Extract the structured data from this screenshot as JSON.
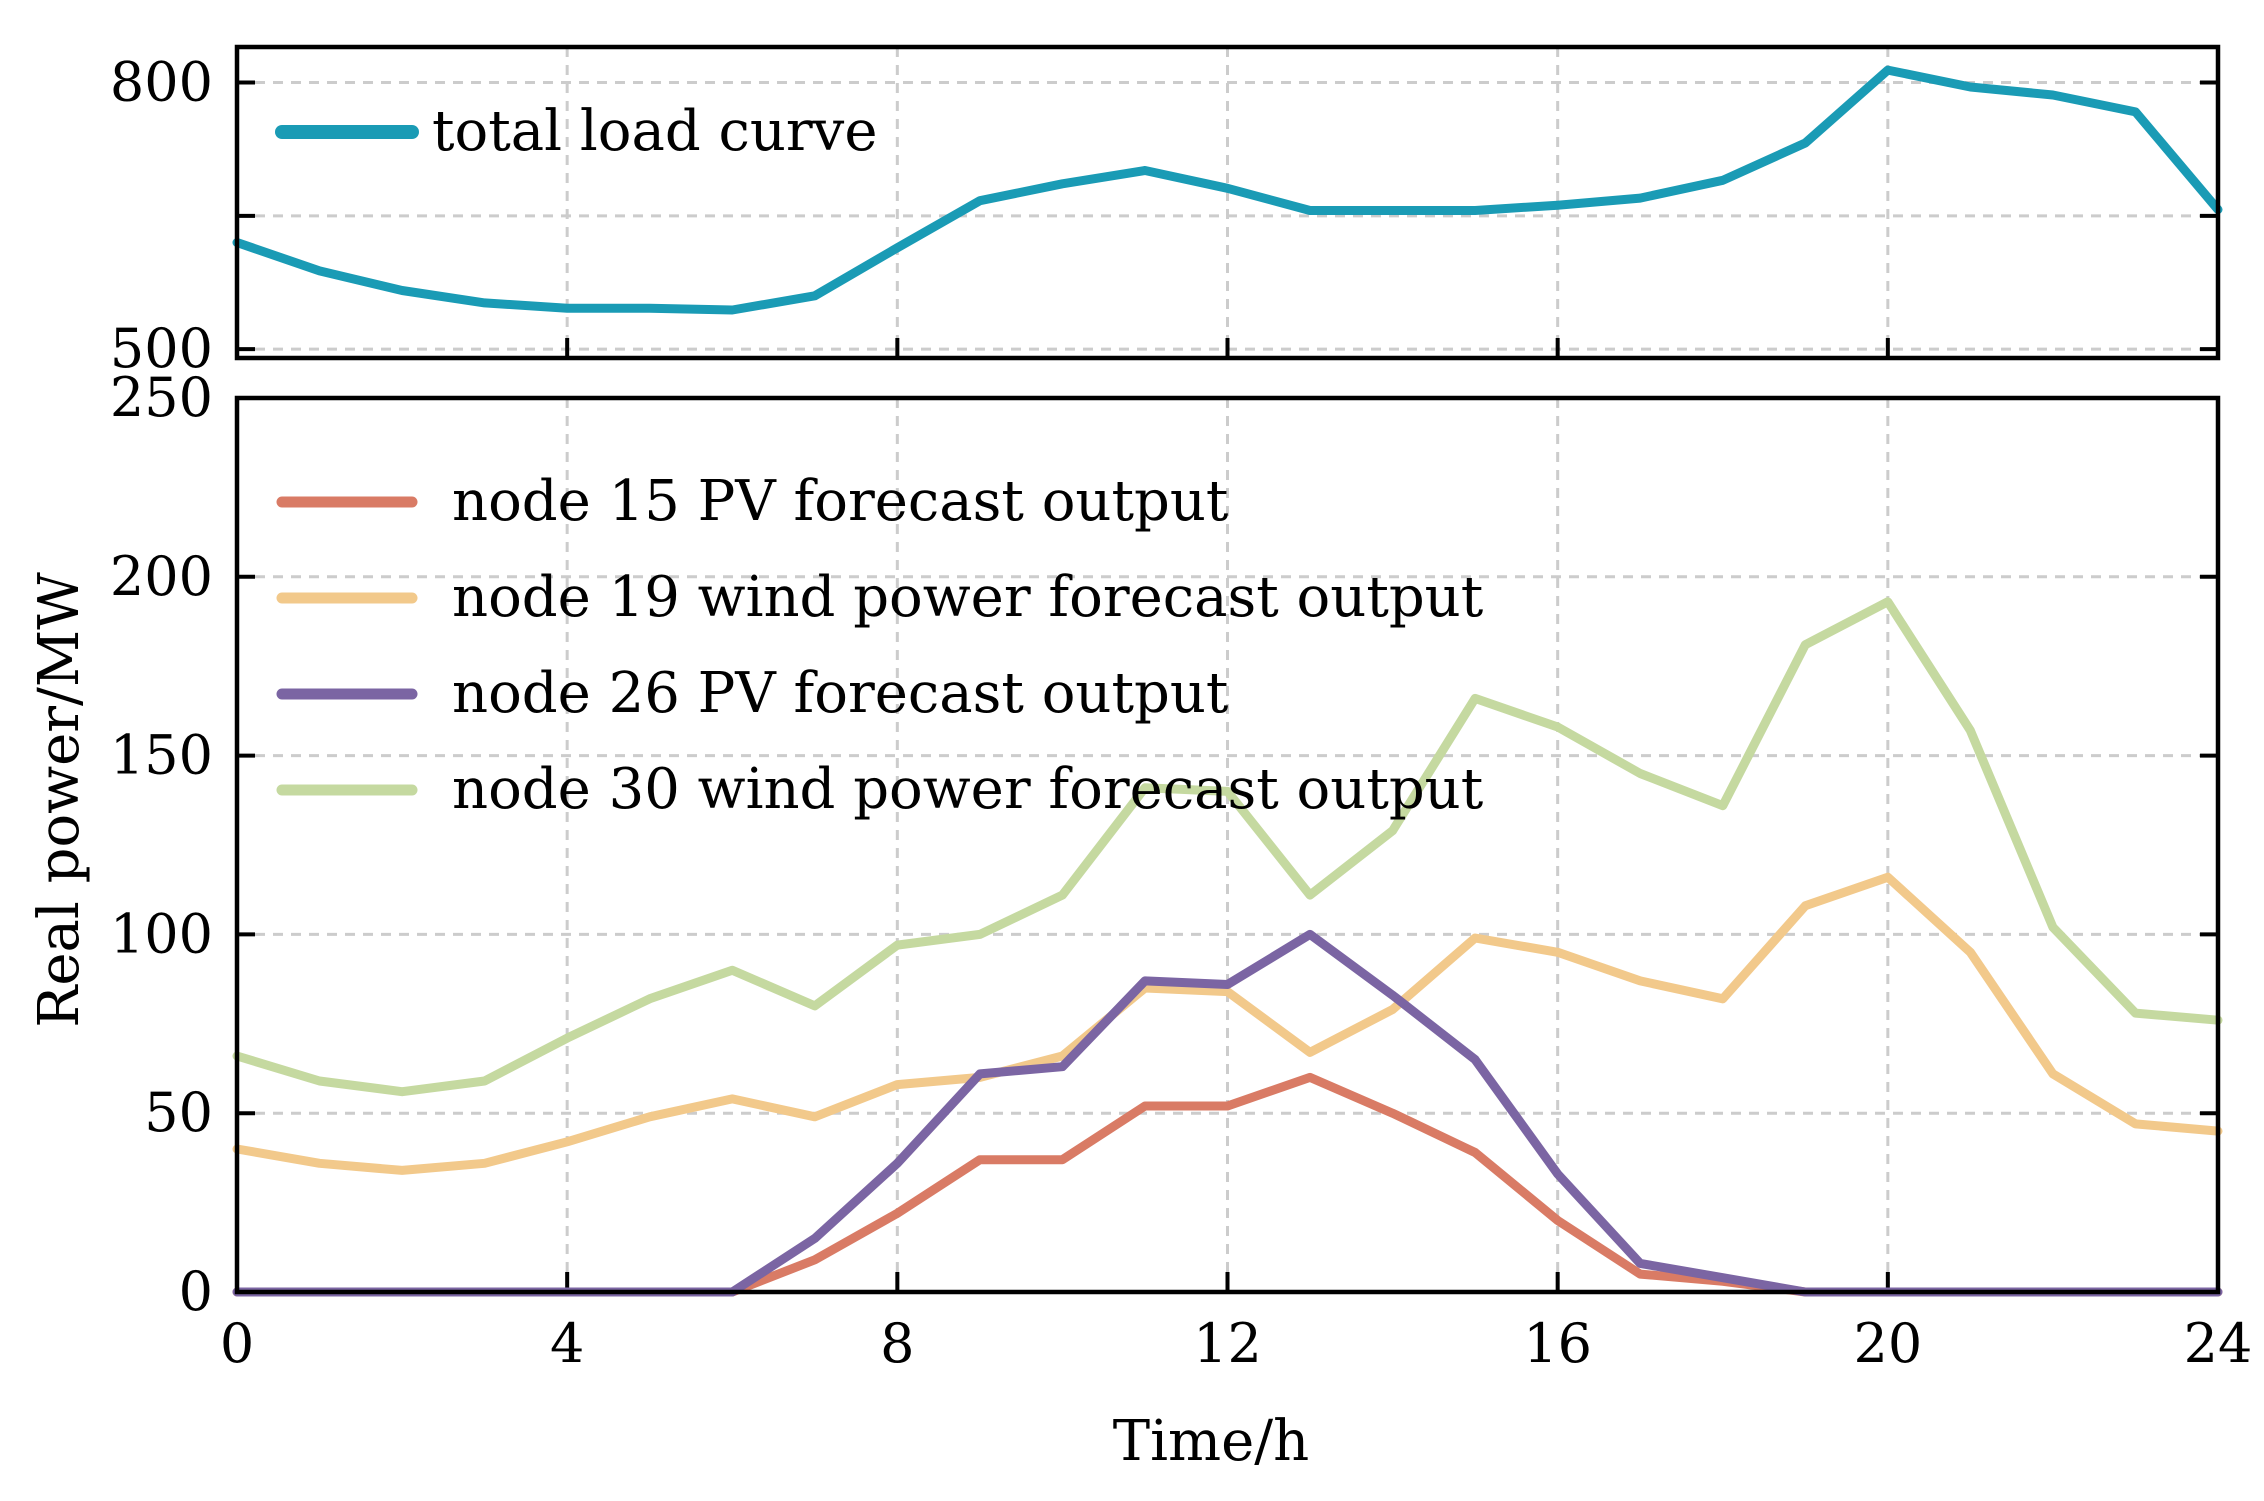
{
  "chart_data": [
    {
      "type": "line",
      "panel": "top",
      "title": "",
      "xlabel": "",
      "ylabel": "",
      "xlim": [
        0,
        24
      ],
      "ylim": [
        490,
        840
      ],
      "xticks": [
        0,
        4,
        8,
        12,
        16,
        20,
        24
      ],
      "ytick_labels": [
        {
          "value": 800,
          "label": "800"
        },
        {
          "value": 650,
          "label": ""
        },
        {
          "value": 500,
          "label": "500"
        }
      ],
      "grid": true,
      "legend_position": "top-left",
      "series": [
        {
          "name": "total load curve",
          "color": "#1a9bb5",
          "x": [
            0,
            1,
            2,
            3,
            4,
            5,
            6,
            7,
            8,
            9,
            10,
            11,
            12,
            13,
            14,
            15,
            16,
            17,
            18,
            19,
            20,
            21,
            22,
            23,
            24
          ],
          "values": [
            620,
            588,
            566,
            552,
            546,
            546,
            544,
            560,
            614,
            667,
            686,
            701,
            681,
            656,
            656,
            656,
            662,
            670,
            690,
            732,
            814,
            795,
            786,
            767,
            657
          ]
        }
      ]
    },
    {
      "type": "line",
      "panel": "bottom",
      "title": "",
      "xlabel": "Time/h",
      "ylabel": "Real power/MW",
      "xlim": [
        0,
        24
      ],
      "ylim": [
        0,
        250
      ],
      "xticks": [
        0,
        4,
        8,
        12,
        16,
        20,
        24
      ],
      "xtick_labels": [
        "0",
        "4",
        "8",
        "12",
        "16",
        "20",
        "24"
      ],
      "yticks": [
        0,
        50,
        100,
        150,
        200,
        250
      ],
      "ytick_labels": [
        "0",
        "50",
        "100",
        "150",
        "200",
        "250"
      ],
      "grid": true,
      "legend_position": "top-left",
      "series": [
        {
          "name": "node 15 PV forecast output",
          "color": "#d97b65",
          "x": [
            0,
            1,
            2,
            3,
            4,
            5,
            6,
            7,
            8,
            9,
            10,
            11,
            12,
            13,
            14,
            15,
            16,
            17,
            18,
            19,
            20,
            21,
            22,
            23,
            24
          ],
          "values": [
            0,
            0,
            0,
            0,
            0,
            0,
            0,
            9,
            22,
            37,
            37,
            52,
            52,
            60,
            50,
            39,
            20,
            5,
            3,
            0,
            0,
            0,
            0,
            0,
            0
          ]
        },
        {
          "name": "node 19 wind power forecast output",
          "color": "#f2c98b",
          "x": [
            0,
            1,
            2,
            3,
            4,
            5,
            6,
            7,
            8,
            9,
            10,
            11,
            12,
            13,
            14,
            15,
            16,
            17,
            18,
            19,
            20,
            21,
            22,
            23,
            24
          ],
          "values": [
            40,
            36,
            34,
            36,
            42,
            49,
            54,
            49,
            58,
            60,
            66,
            85,
            84,
            67,
            79,
            99,
            95,
            87,
            82,
            108,
            116,
            95,
            61,
            47,
            45
          ]
        },
        {
          "name": "node 26 PV forecast output",
          "color": "#7b65a3",
          "x": [
            0,
            1,
            2,
            3,
            4,
            5,
            6,
            7,
            8,
            9,
            10,
            11,
            12,
            13,
            14,
            15,
            16,
            17,
            18,
            19,
            20,
            21,
            22,
            23,
            24
          ],
          "values": [
            0,
            0,
            0,
            0,
            0,
            0,
            0,
            15,
            36,
            61,
            63,
            87,
            86,
            100,
            83,
            65,
            33,
            8,
            4,
            0,
            0,
            0,
            0,
            0,
            0
          ]
        },
        {
          "name": "node 30 wind power forecast output",
          "color": "#c5d9a0",
          "x": [
            0,
            1,
            2,
            3,
            4,
            5,
            6,
            7,
            8,
            9,
            10,
            11,
            12,
            13,
            14,
            15,
            16,
            17,
            18,
            19,
            20,
            21,
            22,
            23,
            24
          ],
          "values": [
            66,
            59,
            56,
            59,
            71,
            82,
            90,
            80,
            97,
            100,
            111,
            141,
            140,
            111,
            129,
            166,
            158,
            145,
            136,
            181,
            193,
            157,
            102,
            78,
            76
          ]
        }
      ]
    }
  ]
}
